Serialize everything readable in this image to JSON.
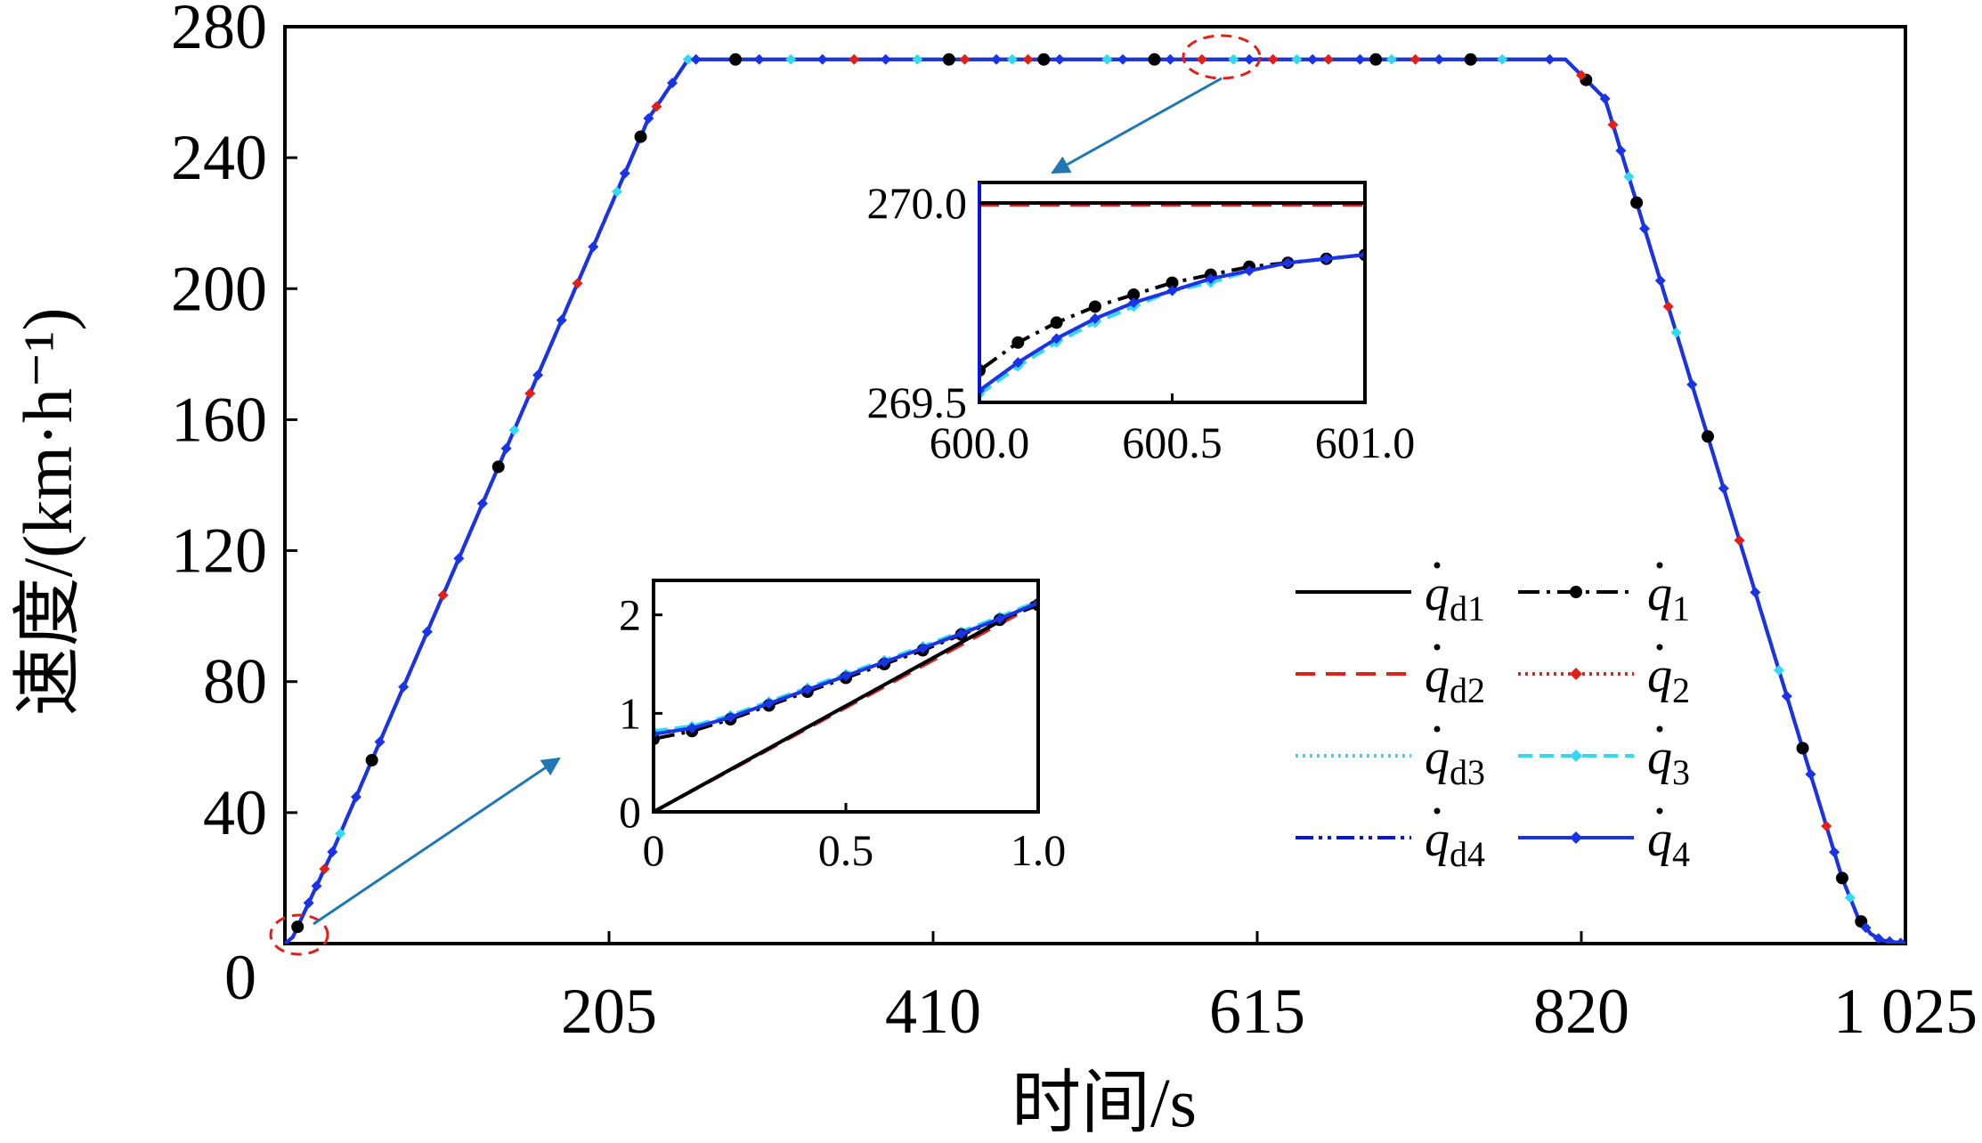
{
  "chart_data": [
    {
      "id": "main",
      "type": "line",
      "xlabel": "时间/s",
      "ylabel": "速度/(km·h⁻¹)",
      "xlim": [
        0,
        1025
      ],
      "ylim": [
        0,
        280
      ],
      "xticks": [
        0,
        205,
        410,
        615,
        820,
        1025
      ],
      "xtick_labels": [
        "0",
        "205",
        "410",
        "615",
        "820",
        "1 025"
      ],
      "yticks": [
        40,
        80,
        120,
        160,
        200,
        240,
        280
      ],
      "ytick_labels": [
        "40",
        "80",
        "120",
        "160",
        "200",
        "240",
        "280"
      ],
      "grid": false,
      "legend": "right-center",
      "profile": {
        "x": [
          0,
          5,
          30,
          230,
          255,
          810,
          835,
          985,
          995,
          1003,
          1010,
          1025
        ],
        "y": [
          0,
          2,
          28,
          252,
          270,
          270,
          258,
          20,
          8,
          3,
          1,
          0
        ]
      },
      "markers": {
        "q1": [
          8,
          55,
          135,
          225,
          285,
          420,
          480,
          550,
          690,
          750,
          823,
          855,
          900,
          960,
          985,
          997
        ],
        "q2": [
          25,
          100,
          155,
          185,
          235,
          360,
          430,
          470,
          580,
          625,
          660,
          715,
          820,
          840,
          875,
          920,
          975
        ],
        "q3": [
          35,
          90,
          145,
          210,
          255,
          320,
          400,
          460,
          520,
          600,
          640,
          700,
          770,
          850,
          880,
          945,
          990
        ],
        "q4": [
          15,
          20,
          30,
          45,
          60,
          75,
          90,
          110,
          125,
          140,
          160,
          175,
          195,
          215,
          230,
          245,
          260,
          300,
          340,
          380,
          450,
          490,
          530,
          560,
          610,
          650,
          680,
          730,
          800,
          835,
          845,
          860,
          870,
          890,
          910,
          930,
          950,
          965,
          980,
          1000,
          1008,
          1015,
          1022
        ]
      },
      "annotations": [
        {
          "type": "ellipse",
          "x": 0,
          "y": 2,
          "color": "#e0201b"
        },
        {
          "type": "ellipse",
          "x": 590,
          "y": 270,
          "color": "#e0201b"
        }
      ]
    },
    {
      "id": "inset-top",
      "type": "line",
      "xlim": [
        600.0,
        601.0
      ],
      "ylim": [
        269.5,
        270.0
      ],
      "xticks": [
        600.0,
        600.5,
        601.0
      ],
      "xtick_labels": [
        "600.0",
        "600.5",
        "601.0"
      ],
      "yticks": [
        269.5,
        270.0
      ],
      "ytick_labels": [
        "269.5",
        "270.0"
      ],
      "series": [
        {
          "key": "qd1",
          "x": [
            600.0,
            601.0
          ],
          "y": [
            270.0,
            270.0
          ]
        },
        {
          "key": "qd2",
          "x": [
            600.0,
            601.0
          ],
          "y": [
            269.995,
            269.995
          ]
        },
        {
          "key": "qd3",
          "x": [
            600.0,
            601.0
          ],
          "y": [
            270.0,
            270.0
          ]
        },
        {
          "key": "qd4",
          "x": [
            600.0,
            601.0
          ],
          "y": [
            270.0,
            270.0
          ]
        },
        {
          "key": "q1",
          "x": [
            600.0,
            600.1,
            600.2,
            600.3,
            600.4,
            600.5,
            600.6,
            600.7,
            600.8,
            600.9,
            601.0
          ],
          "y": [
            269.58,
            269.65,
            269.7,
            269.74,
            269.77,
            269.8,
            269.82,
            269.84,
            269.85,
            269.86,
            269.87
          ]
        },
        {
          "key": "q2",
          "x": [
            600.0,
            600.1,
            600.2,
            600.3,
            600.4,
            600.5,
            600.6,
            600.7,
            600.8,
            600.9,
            601.0
          ],
          "y": [
            269.53,
            269.6,
            269.66,
            269.71,
            269.75,
            269.78,
            269.81,
            269.83,
            269.85,
            269.86,
            269.87
          ]
        },
        {
          "key": "q3",
          "x": [
            600.0,
            600.1,
            600.2,
            600.3,
            600.4,
            600.5,
            600.6,
            600.7,
            600.8,
            600.9,
            601.0
          ],
          "y": [
            269.52,
            269.59,
            269.65,
            269.7,
            269.74,
            269.78,
            269.8,
            269.83,
            269.85,
            269.86,
            269.87
          ]
        },
        {
          "key": "q4",
          "x": [
            600.0,
            600.1,
            600.2,
            600.3,
            600.4,
            600.5,
            600.6,
            600.7,
            600.8,
            600.9,
            601.0
          ],
          "y": [
            269.53,
            269.6,
            269.66,
            269.71,
            269.75,
            269.78,
            269.81,
            269.83,
            269.85,
            269.86,
            269.87
          ]
        }
      ]
    },
    {
      "id": "inset-bottom",
      "type": "line",
      "xlim": [
        0,
        1.0
      ],
      "ylim": [
        0,
        2.35
      ],
      "xticks": [
        0,
        0.5,
        1.0
      ],
      "xtick_labels": [
        "0",
        "0.5",
        "1.0"
      ],
      "yticks": [
        0,
        1,
        2
      ],
      "ytick_labels": [
        "0",
        "1",
        "2"
      ],
      "series": [
        {
          "key": "qd1",
          "x": [
            0,
            1.0
          ],
          "y": [
            0,
            2.15
          ]
        },
        {
          "key": "qd2",
          "x": [
            0,
            1.0
          ],
          "y": [
            0,
            2.12
          ]
        },
        {
          "key": "qd3",
          "x": [
            0,
            1.0
          ],
          "y": [
            0,
            2.15
          ]
        },
        {
          "key": "qd4",
          "x": [
            0,
            1.0
          ],
          "y": [
            0,
            2.15
          ]
        },
        {
          "key": "q1",
          "x": [
            0,
            0.1,
            0.2,
            0.3,
            0.4,
            0.5,
            0.6,
            0.7,
            0.8,
            0.9,
            1.0
          ],
          "y": [
            0.74,
            0.82,
            0.94,
            1.08,
            1.22,
            1.36,
            1.5,
            1.64,
            1.8,
            1.95,
            2.1
          ]
        },
        {
          "key": "q2",
          "x": [
            0,
            0.1,
            0.2,
            0.3,
            0.4,
            0.5,
            0.6,
            0.7,
            0.8,
            0.9,
            1.0
          ],
          "y": [
            0.8,
            0.85,
            0.96,
            1.1,
            1.24,
            1.38,
            1.52,
            1.66,
            1.81,
            1.96,
            2.12
          ]
        },
        {
          "key": "q3",
          "x": [
            0,
            0.1,
            0.2,
            0.3,
            0.4,
            0.5,
            0.6,
            0.7,
            0.8,
            0.9,
            1.0
          ],
          "y": [
            0.82,
            0.87,
            0.98,
            1.12,
            1.26,
            1.4,
            1.54,
            1.68,
            1.83,
            1.98,
            2.14
          ]
        },
        {
          "key": "q4",
          "x": [
            0,
            0.1,
            0.2,
            0.3,
            0.4,
            0.5,
            0.6,
            0.7,
            0.8,
            0.9,
            1.0
          ],
          "y": [
            0.79,
            0.85,
            0.96,
            1.1,
            1.24,
            1.38,
            1.52,
            1.66,
            1.81,
            1.96,
            2.12
          ]
        }
      ]
    }
  ],
  "legend": {
    "entries": [
      {
        "key": "qd1",
        "base": "q",
        "sub": "d1",
        "color": "#000000",
        "dash": "",
        "marker": false
      },
      {
        "key": "q1",
        "base": "q",
        "sub": "1",
        "color": "#000000",
        "dash": "24 8 4 8",
        "marker": true
      },
      {
        "key": "qd2",
        "base": "q",
        "sub": "d2",
        "color": "#e0201b",
        "dash": "22 12",
        "marker": false
      },
      {
        "key": "q2",
        "base": "q",
        "sub": "2",
        "color": "#e0201b",
        "dash": "3 5",
        "marker": true
      },
      {
        "key": "qd3",
        "base": "q",
        "sub": "d3",
        "color": "#33d9f2",
        "dash": "3 5",
        "marker": false
      },
      {
        "key": "q3",
        "base": "q",
        "sub": "3",
        "color": "#33d9f2",
        "dash": "16 8",
        "marker": true
      },
      {
        "key": "qd4",
        "base": "q",
        "sub": "d4",
        "color": "#0a14d8",
        "dash": "20 6 4 6 4 6",
        "marker": false
      },
      {
        "key": "q4",
        "base": "q",
        "sub": "4",
        "color": "#1a33e6",
        "dash": "",
        "marker": true
      }
    ]
  },
  "colors": {
    "arrow": "#1f77b4",
    "highlight": "#e0201b"
  }
}
